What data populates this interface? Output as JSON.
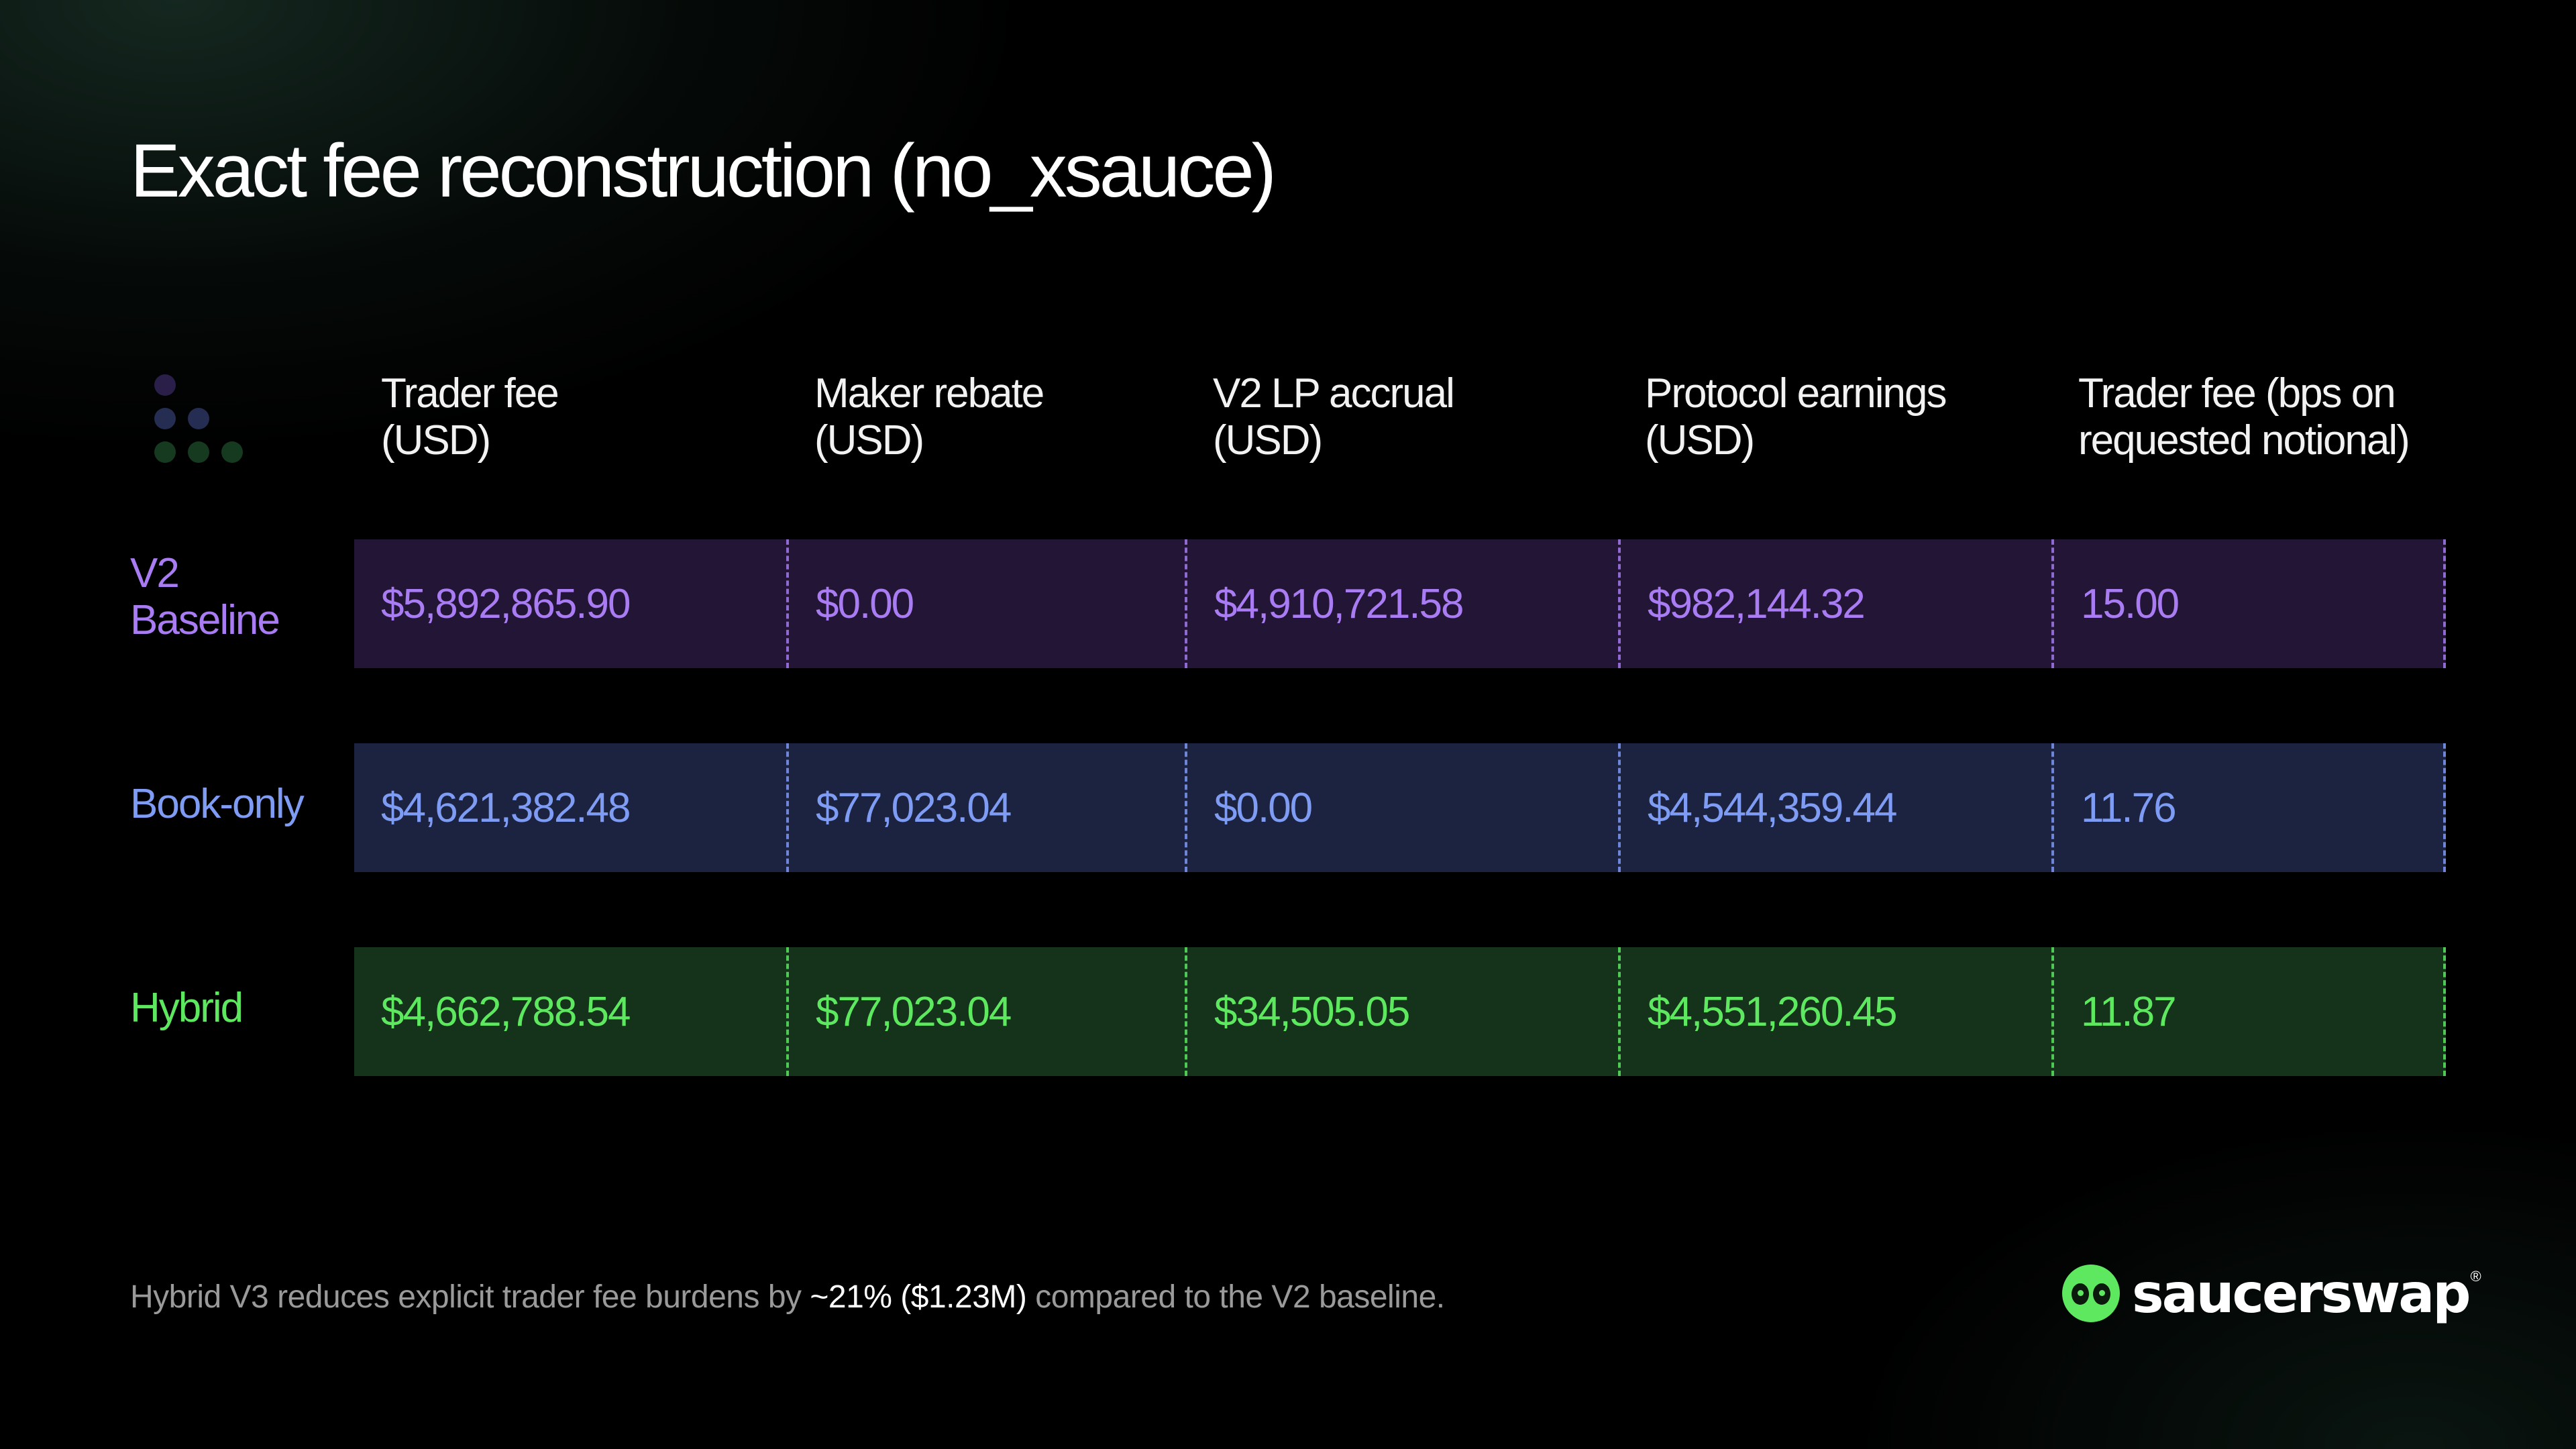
{
  "title": "Exact fee reconstruction (no_xsauce)",
  "columns": [
    {
      "line1": "Trader fee",
      "line2": "(USD)"
    },
    {
      "line1": "Maker rebate",
      "line2": "(USD)"
    },
    {
      "line1": "V2 LP accrual",
      "line2": "(USD)"
    },
    {
      "line1": "Protocol earnings",
      "line2": "(USD)"
    },
    {
      "line1": "Trader fee (bps on",
      "line2": "requested notional)"
    }
  ],
  "rows": [
    {
      "label_line1": "V2",
      "label_line2": "Baseline",
      "cells": [
        "$5,892,865.90",
        "$0.00",
        "$4,910,721.58",
        "$982,144.32",
        "15.00"
      ],
      "text_color": "#a97cf4",
      "band_color": "#221535",
      "separator_color": "#8f6ad0"
    },
    {
      "label_line1": "Book-only",
      "cells": [
        "$4,621,382.48",
        "$77,023.04",
        "$0.00",
        "$4,544,359.44",
        "11.76"
      ],
      "text_color": "#7f9cf5",
      "band_color": "#1c2340",
      "separator_color": "#6f86d8"
    },
    {
      "label_line1": "Hybrid",
      "cells": [
        "$4,662,788.54",
        "$77,023.04",
        "$34,505.05",
        "$4,551,260.45",
        "11.87"
      ],
      "text_color": "#5ee860",
      "band_color": "#15321b",
      "separator_color": "#4fc855"
    }
  ],
  "footnote": {
    "before": "Hybrid V3 reduces explicit trader fee burdens by ",
    "highlight": "~21% ($1.23M)",
    "after": " compared to the V2 baseline."
  },
  "logo": {
    "text": "saucerswap",
    "registered_mark": "®",
    "icon": "alien-face-icon"
  },
  "decor": {
    "icon": "dots-triangle-icon",
    "dot_colors": [
      "#2a1f48",
      "#252e52",
      "#163a20"
    ]
  }
}
